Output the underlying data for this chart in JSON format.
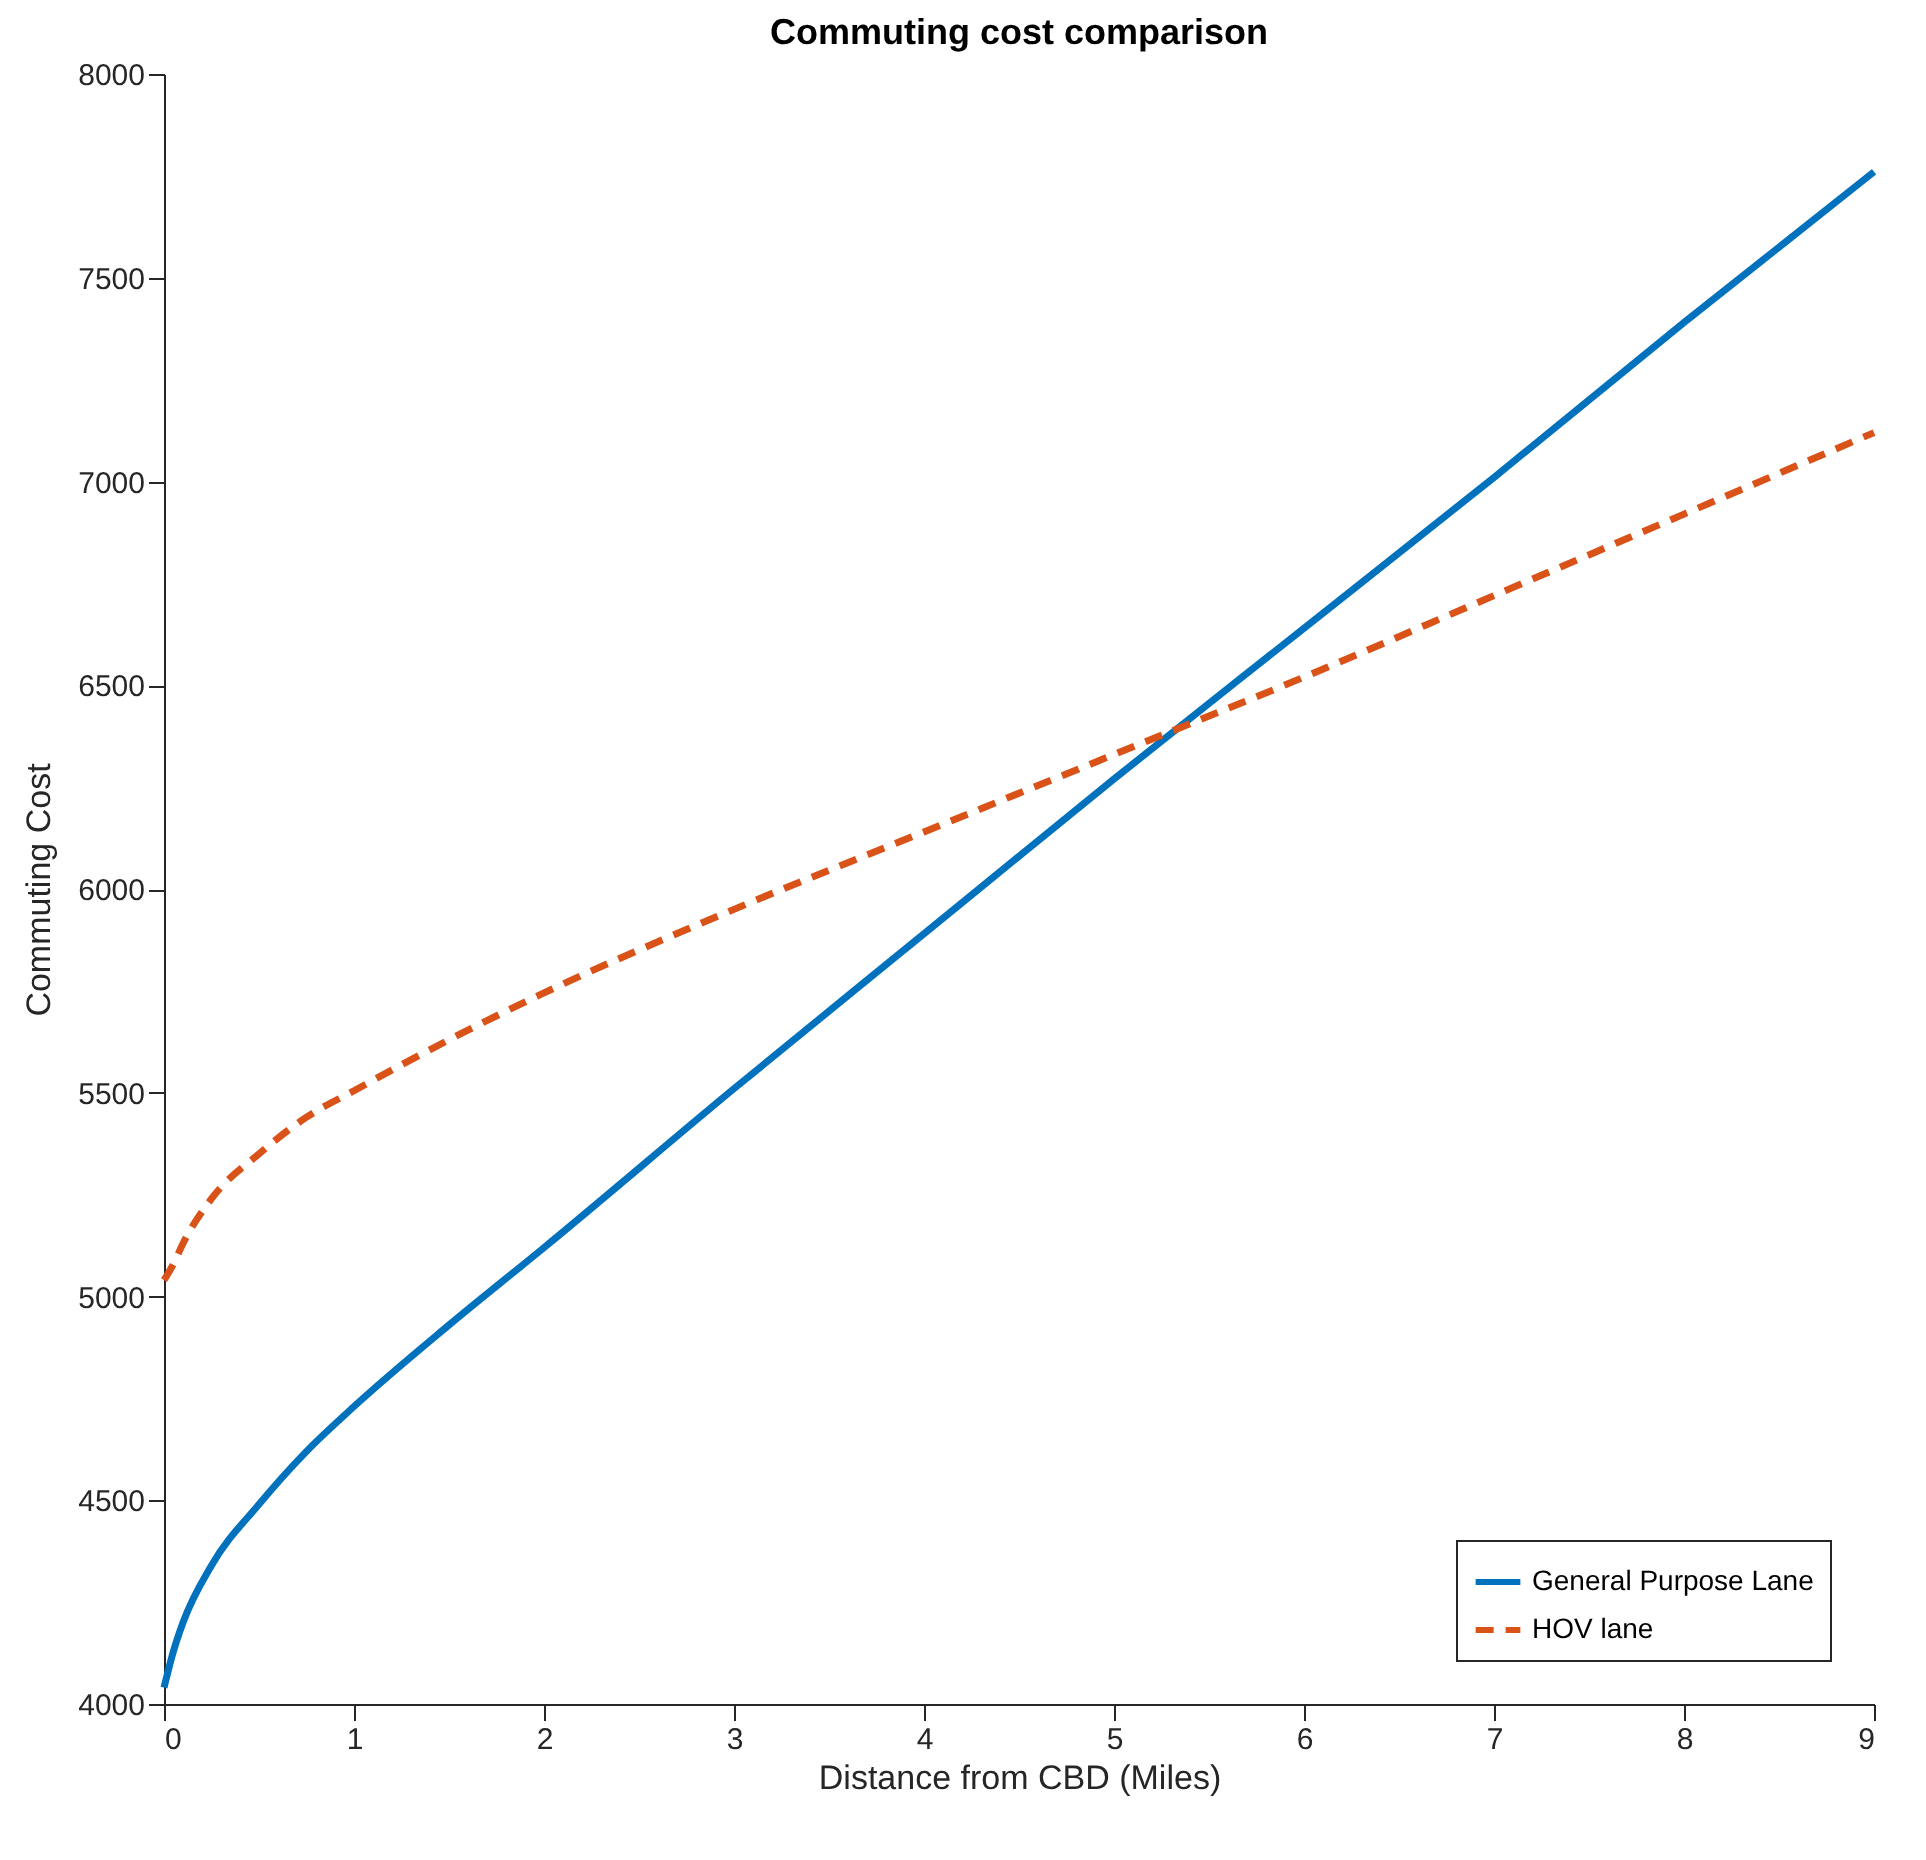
{
  "chart_data": {
    "type": "line",
    "title": "Commuting cost comparison",
    "xlabel": "Distance from CBD (Miles)",
    "ylabel": "Commuting Cost",
    "xlim": [
      0,
      9
    ],
    "ylim": [
      4000,
      8000
    ],
    "xticks": [
      0,
      1,
      2,
      3,
      4,
      5,
      6,
      7,
      8,
      9
    ],
    "yticks": [
      4000,
      4500,
      5000,
      5500,
      6000,
      6500,
      7000,
      7500,
      8000
    ],
    "grid": false,
    "legend": "bottom right",
    "marker": "none",
    "x": [
      0,
      0.05,
      0.1,
      0.25,
      0.5,
      0.75,
      1,
      1.5,
      2,
      3,
      4,
      5,
      6,
      7,
      8,
      9
    ],
    "series": [
      {
        "name": "General Purpose Lane",
        "color": "#0072bd",
        "line_style": "solid",
        "values": [
          4040,
          4130,
          4200,
          4340,
          4490,
          4620,
          4730,
          4930,
          5120,
          5510,
          5890,
          6270,
          6640,
          7010,
          7390,
          7760
        ]
      },
      {
        "name": "HOV lane",
        "color": "#d95319",
        "line_style": "dashed",
        "values": [
          5040,
          5080,
          5130,
          5240,
          5350,
          5440,
          5505,
          5630,
          5745,
          5950,
          6140,
          6330,
          6520,
          6720,
          6920,
          7120
        ]
      }
    ]
  }
}
